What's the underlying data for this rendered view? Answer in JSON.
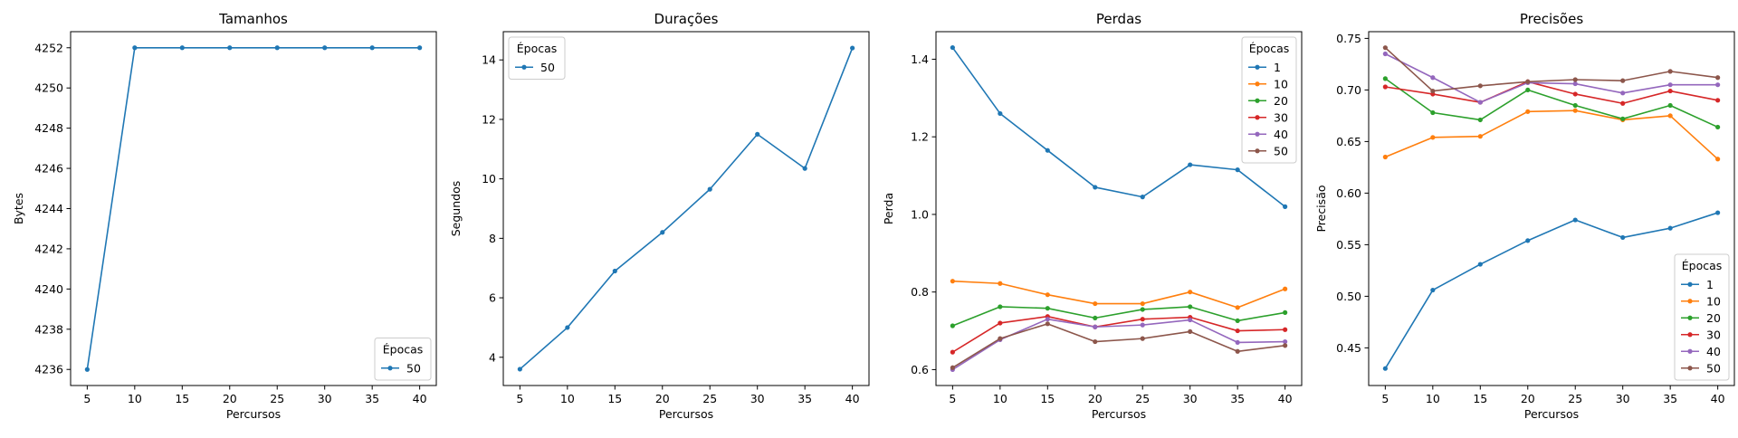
{
  "chart_data": [
    {
      "type": "line",
      "title": "Tamanhos",
      "xlabel": "Percursos",
      "ylabel": "Bytes",
      "x": [
        5,
        10,
        15,
        20,
        25,
        30,
        35,
        40
      ],
      "xlim": [
        3.25,
        41.75
      ],
      "ylim": [
        4235.2,
        4252.8
      ],
      "xticks": [
        5,
        10,
        15,
        20,
        25,
        30,
        35,
        40
      ],
      "yticks": [
        4236,
        4238,
        4240,
        4242,
        4244,
        4246,
        4248,
        4250,
        4252
      ],
      "legend": {
        "title": "Épocas",
        "position": "lower-right"
      },
      "series": [
        {
          "name": "50",
          "color": "#1f77b4",
          "values": [
            4236,
            4252,
            4252,
            4252,
            4252,
            4252,
            4252,
            4252
          ]
        }
      ]
    },
    {
      "type": "line",
      "title": "Durações",
      "xlabel": "Percursos",
      "ylabel": "Segundos",
      "x": [
        5,
        10,
        15,
        20,
        25,
        30,
        35,
        40
      ],
      "xlim": [
        3.25,
        41.75
      ],
      "ylim": [
        3.05,
        14.95
      ],
      "xticks": [
        5,
        10,
        15,
        20,
        25,
        30,
        35,
        40
      ],
      "yticks": [
        4,
        6,
        8,
        10,
        12,
        14
      ],
      "legend": {
        "title": "Épocas",
        "position": "upper-left"
      },
      "series": [
        {
          "name": "50",
          "color": "#1f77b4",
          "values": [
            3.6,
            5.0,
            6.9,
            8.2,
            9.65,
            11.5,
            10.35,
            14.4
          ]
        }
      ]
    },
    {
      "type": "line",
      "title": "Perdas",
      "xlabel": "Percursos",
      "ylabel": "Perda",
      "x": [
        5,
        10,
        15,
        20,
        25,
        30,
        35,
        40
      ],
      "xlim": [
        3.25,
        41.75
      ],
      "ylim": [
        0.559,
        1.471
      ],
      "xticks": [
        5,
        10,
        15,
        20,
        25,
        30,
        35,
        40
      ],
      "yticks": [
        0.6,
        0.8,
        1.0,
        1.2,
        1.4
      ],
      "ytick_labels": [
        "0.6",
        "0.8",
        "1.0",
        "1.2",
        "1.4"
      ],
      "legend": {
        "title": "Épocas",
        "position": "upper-right"
      },
      "series": [
        {
          "name": "1",
          "color": "#1f77b4",
          "values": [
            1.43,
            1.26,
            1.165,
            1.07,
            1.045,
            1.128,
            1.115,
            1.02
          ]
        },
        {
          "name": "10",
          "color": "#ff7f0e",
          "values": [
            0.828,
            0.822,
            0.793,
            0.77,
            0.77,
            0.8,
            0.76,
            0.808
          ]
        },
        {
          "name": "20",
          "color": "#2ca02c",
          "values": [
            0.713,
            0.762,
            0.758,
            0.733,
            0.755,
            0.762,
            0.726,
            0.747
          ]
        },
        {
          "name": "30",
          "color": "#d62728",
          "values": [
            0.645,
            0.72,
            0.737,
            0.71,
            0.73,
            0.735,
            0.7,
            0.703
          ]
        },
        {
          "name": "40",
          "color": "#9467bd",
          "values": [
            0.6,
            0.677,
            0.73,
            0.71,
            0.715,
            0.728,
            0.67,
            0.672
          ]
        },
        {
          "name": "50",
          "color": "#8c564b",
          "values": [
            0.605,
            0.68,
            0.718,
            0.672,
            0.68,
            0.698,
            0.647,
            0.662
          ]
        }
      ]
    },
    {
      "type": "line",
      "title": "Precisões",
      "xlabel": "Percursos",
      "ylabel": "Precisão",
      "x": [
        5,
        10,
        15,
        20,
        25,
        30,
        35,
        40
      ],
      "xlim": [
        3.25,
        41.75
      ],
      "ylim": [
        0.4135,
        0.7565
      ],
      "xticks": [
        5,
        10,
        15,
        20,
        25,
        30,
        35,
        40
      ],
      "yticks": [
        0.45,
        0.5,
        0.55,
        0.6,
        0.65,
        0.7,
        0.75
      ],
      "ytick_labels": [
        "0.45",
        "0.50",
        "0.55",
        "0.60",
        "0.65",
        "0.70",
        "0.75"
      ],
      "legend": {
        "title": "Épocas",
        "position": "lower-right"
      },
      "series": [
        {
          "name": "1",
          "color": "#1f77b4",
          "values": [
            0.43,
            0.506,
            0.531,
            0.554,
            0.574,
            0.557,
            0.566,
            0.581
          ]
        },
        {
          "name": "10",
          "color": "#ff7f0e",
          "values": [
            0.635,
            0.654,
            0.655,
            0.679,
            0.68,
            0.671,
            0.675,
            0.633
          ]
        },
        {
          "name": "20",
          "color": "#2ca02c",
          "values": [
            0.711,
            0.678,
            0.671,
            0.7,
            0.685,
            0.672,
            0.685,
            0.664
          ]
        },
        {
          "name": "30",
          "color": "#d62728",
          "values": [
            0.703,
            0.696,
            0.688,
            0.708,
            0.696,
            0.687,
            0.699,
            0.69
          ]
        },
        {
          "name": "40",
          "color": "#9467bd",
          "values": [
            0.735,
            0.712,
            0.688,
            0.707,
            0.706,
            0.697,
            0.705,
            0.705
          ]
        },
        {
          "name": "50",
          "color": "#8c564b",
          "values": [
            0.741,
            0.699,
            0.704,
            0.708,
            0.71,
            0.709,
            0.718,
            0.712
          ]
        }
      ]
    }
  ]
}
